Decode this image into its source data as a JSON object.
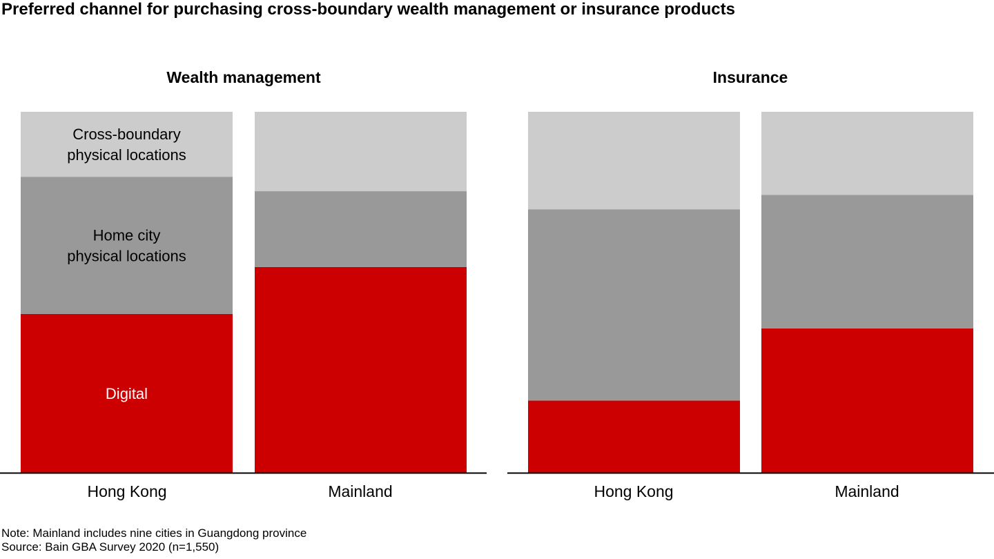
{
  "title": "Preferred channel for purchasing cross-boundary wealth management or insurance products",
  "note": "Note: Mainland includes nine cities in Guangdong province",
  "source": "Source: Bain GBA Survey 2020 (n=1,550)",
  "colors": {
    "Digital": "#cc0000",
    "Home city physical locations": "#999999",
    "Cross-boundary physical locations": "#cccccc"
  },
  "chart_data": [
    {
      "type": "bar",
      "stacked": true,
      "title": "Wealth management",
      "categories": [
        "Hong Kong",
        "Mainland"
      ],
      "ylim": [
        0,
        100
      ],
      "series": [
        {
          "name": "Digital",
          "values": [
            44,
            57
          ]
        },
        {
          "name": "Home city physical locations",
          "values": [
            38,
            21
          ]
        },
        {
          "name": "Cross-boundary physical locations",
          "values": [
            18,
            22
          ]
        }
      ],
      "segment_labels": [
        {
          "series": "Digital",
          "category": "Hong Kong",
          "lines": [
            "Digital"
          ]
        },
        {
          "series": "Home city physical locations",
          "category": "Hong Kong",
          "lines": [
            "Home city",
            "physical locations"
          ]
        },
        {
          "series": "Cross-boundary physical locations",
          "category": "Hong Kong",
          "lines": [
            "Cross-boundary",
            "physical locations"
          ]
        }
      ]
    },
    {
      "type": "bar",
      "stacked": true,
      "title": "Insurance",
      "categories": [
        "Hong Kong",
        "Mainland"
      ],
      "ylim": [
        0,
        100
      ],
      "series": [
        {
          "name": "Digital",
          "values": [
            20,
            40
          ]
        },
        {
          "name": "Home city physical locations",
          "values": [
            53,
            37
          ]
        },
        {
          "name": "Cross-boundary physical locations",
          "values": [
            27,
            23
          ]
        }
      ],
      "segment_labels": []
    }
  ]
}
